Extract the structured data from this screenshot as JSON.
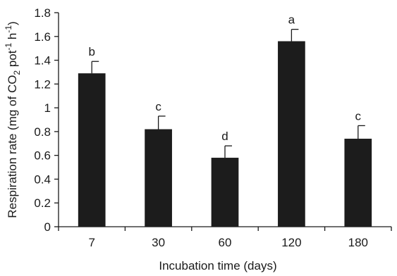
{
  "chart_data": {
    "type": "bar",
    "categories": [
      "7",
      "30",
      "60",
      "120",
      "180"
    ],
    "values": [
      1.29,
      0.82,
      0.58,
      1.56,
      0.74
    ],
    "error": [
      0.1,
      0.11,
      0.1,
      0.1,
      0.11
    ],
    "significance_letters": [
      "b",
      "c",
      "d",
      "a",
      "c"
    ],
    "xlabel": "Incubation time (days)",
    "ylabel": {
      "prefix": "Respiration rate (mg of CO",
      "sub": "2",
      "mid": " pot",
      "sup1": "-1",
      "mid2": " h",
      "sup2": "-1",
      "suffix": ")"
    },
    "ylim": [
      0,
      1.8
    ],
    "yticks": [
      "0",
      "0.2",
      "0.4",
      "0.6",
      "0.8",
      "1",
      "1.2",
      "1.4",
      "1.6",
      "1.8"
    ],
    "bar_color": "#1c1c1c",
    "grid": false,
    "legend": "none"
  }
}
